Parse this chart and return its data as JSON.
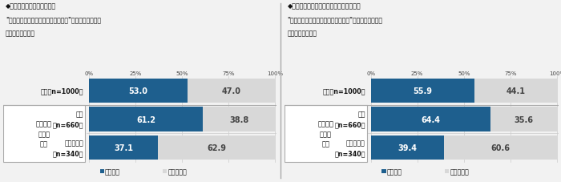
{
  "charts": [
    {
      "title_line1": "◆自身の職場では目視による",
      "title_line2": "\"社用車運転者のアルコールチェック\"を実施しているか",
      "title_line3": "［単一回答形式］",
      "rows": [
        {
          "label1": "全体［n=1000］",
          "label2": "",
          "v1": 53.0,
          "v2": 47.0
        },
        {
          "label1": "対象",
          "label2": "［n=660］",
          "v1": 61.2,
          "v2": 38.8
        },
        {
          "label1": "対象でない",
          "label2": "［n=340］",
          "v1": 37.1,
          "v2": 62.9
        }
      ]
    },
    {
      "title_line1": "◆自身の職場ではアルコール検知器による",
      "title_line2": "\"社用車運転者のアルコールチェック\"を実施しているか",
      "title_line3": "［単一回答形式］",
      "rows": [
        {
          "label1": "全体［n=1000］",
          "label2": "",
          "v1": 55.9,
          "v2": 44.1
        },
        {
          "label1": "対象",
          "label2": "［n=660］",
          "v1": 64.4,
          "v2": 35.6
        },
        {
          "label1": "対象でない",
          "label2": "［n=340］",
          "v1": 39.4,
          "v2": 60.6
        }
      ]
    }
  ],
  "color_doing": "#1e5f8e",
  "color_not": "#d8d8d8",
  "side_label_line1": "安全運転",
  "side_label_line2": "管理者",
  "side_label_line3": "設置",
  "legend_doing": "している",
  "legend_not": "していない",
  "bg_color": "#f2f2f2",
  "separator_color": "#aaaaaa",
  "tick_labels": [
    "0%",
    "25%",
    "50%",
    "75%",
    "100%"
  ],
  "tick_values": [
    0,
    25,
    50,
    75,
    100
  ]
}
